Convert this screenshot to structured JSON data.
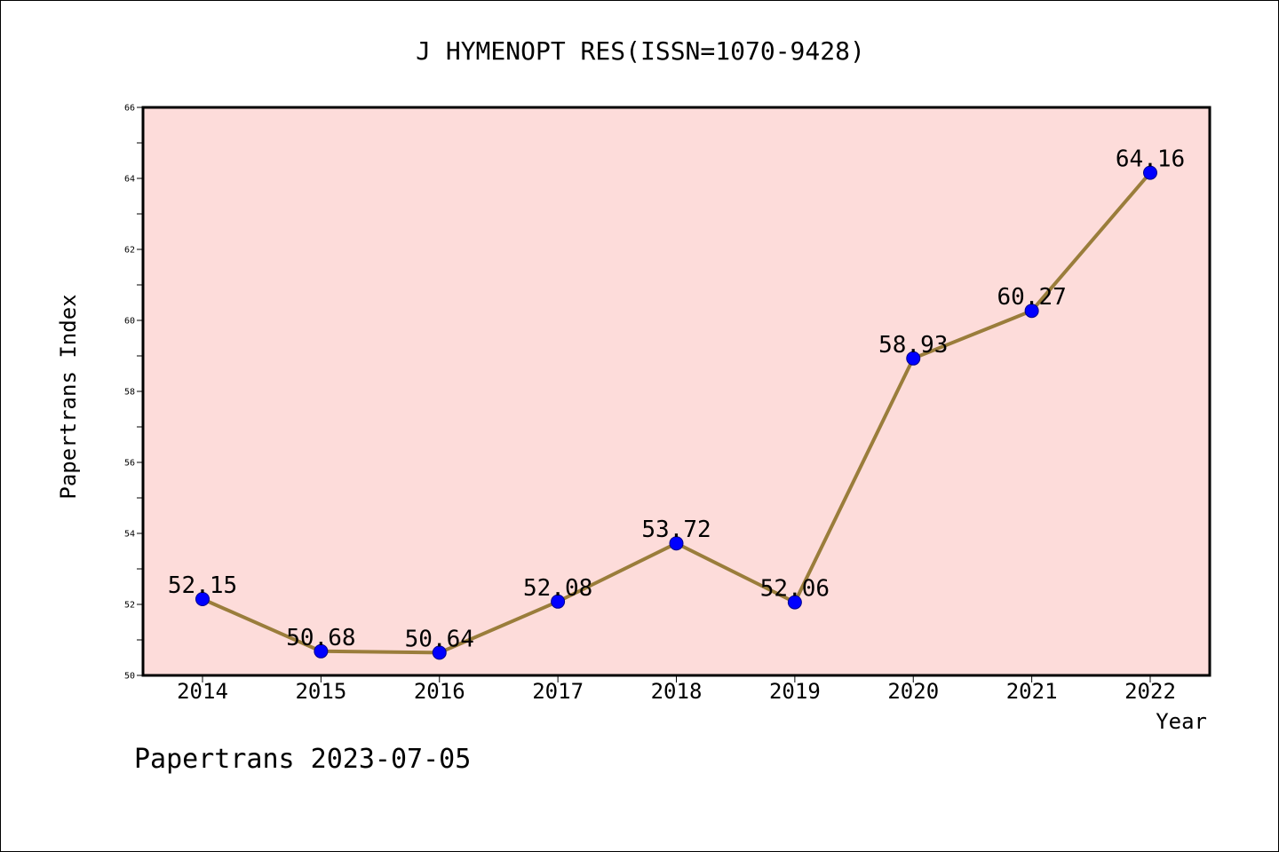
{
  "chart_data": {
    "type": "line",
    "title": "J HYMENOPT RES(ISSN=1070-9428)",
    "xlabel": "Year",
    "ylabel": "Papertrans Index",
    "categories": [
      "2014",
      "2015",
      "2016",
      "2017",
      "2018",
      "2019",
      "2020",
      "2021",
      "2022"
    ],
    "series": [
      {
        "values": [
          52.15,
          50.68,
          50.64,
          52.08,
          53.72,
          52.06,
          58.93,
          60.27,
          64.16
        ],
        "data_labels": [
          "52.15",
          "50.68",
          "50.64",
          "52.08",
          "53.72",
          "52.06",
          "58.93",
          "60.27",
          "64.16"
        ]
      }
    ],
    "ylim": [
      50,
      66
    ],
    "yticks": [
      "50",
      "52",
      "54",
      "56",
      "58",
      "60",
      "62",
      "64",
      "66"
    ],
    "grid": false,
    "legend": "none",
    "colors": {
      "plot_background": "#fddcda",
      "line": "#9a7d3b",
      "marker": "#0000ff"
    }
  },
  "footer": {
    "text": "Papertrans 2023-07-05"
  }
}
